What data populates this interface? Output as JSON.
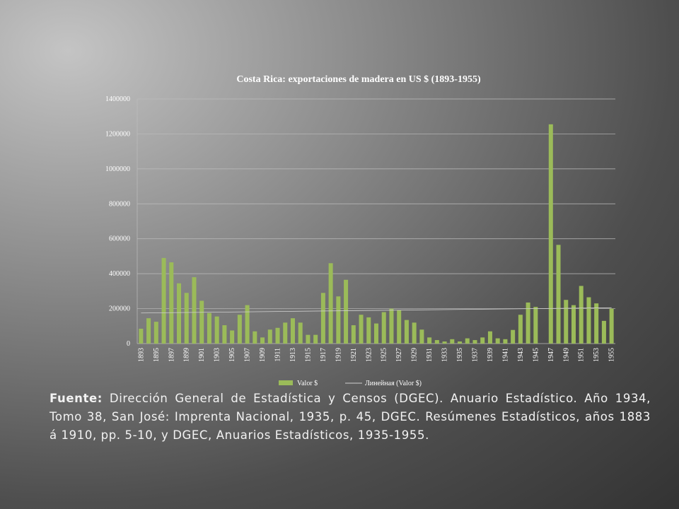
{
  "chart_data": {
    "type": "bar",
    "title": "Costa Rica: exportaciones de madera en US $ (1893-1955)",
    "categories": [
      "1893",
      null,
      "1895",
      null,
      "1897",
      null,
      "1899",
      null,
      "1901",
      null,
      "1903",
      null,
      "1905",
      null,
      "1907",
      null,
      "1909",
      null,
      "1911",
      null,
      "1913",
      null,
      "1915",
      null,
      "1917",
      null,
      "1919",
      null,
      "1921",
      null,
      "1923",
      null,
      "1925",
      null,
      "1927",
      null,
      "1929",
      null,
      "1931",
      null,
      "1933",
      null,
      "1935",
      null,
      "1937",
      null,
      "1939",
      null,
      "1941",
      null,
      "1943",
      null,
      "1945",
      null,
      "1947",
      null,
      "1949",
      null,
      "1951",
      null,
      "1953",
      null,
      "1955"
    ],
    "series": [
      {
        "name": "Valor $",
        "color": "#9bbb59",
        "values": [
          85000,
          145000,
          125000,
          490000,
          465000,
          345000,
          290000,
          380000,
          245000,
          175000,
          155000,
          105000,
          75000,
          165000,
          220000,
          70000,
          35000,
          80000,
          90000,
          120000,
          145000,
          120000,
          50000,
          50000,
          290000,
          460000,
          270000,
          365000,
          105000,
          165000,
          150000,
          115000,
          180000,
          200000,
          190000,
          135000,
          120000,
          80000,
          35000,
          20000,
          12000,
          25000,
          12000,
          30000,
          20000,
          35000,
          70000,
          30000,
          25000,
          78000,
          165000,
          235000,
          210000,
          0,
          1255000,
          565000,
          250000,
          220000,
          330000,
          265000,
          230000,
          130000,
          200000
        ]
      }
    ],
    "trendline": {
      "name": "Линейная (Valor $)",
      "values": [
        175000,
        205000
      ]
    },
    "ylim": [
      0,
      1400000
    ],
    "yticks": [
      0,
      200000,
      400000,
      600000,
      800000,
      1000000,
      1200000,
      1400000
    ],
    "grid": true
  },
  "note": {
    "label": "Fuente:",
    "text": " Dirección General de Estadística y Censos (DGEC). Anuario Estadístico. Año 1934, Tomo 38, San José: Imprenta Nacional, 1935, p. 45, DGEC. Resúmenes Estadísticos, años 1883 á 1910, pp. 5-10, y DGEC, Anuarios Estadísticos, 1935-1955."
  }
}
